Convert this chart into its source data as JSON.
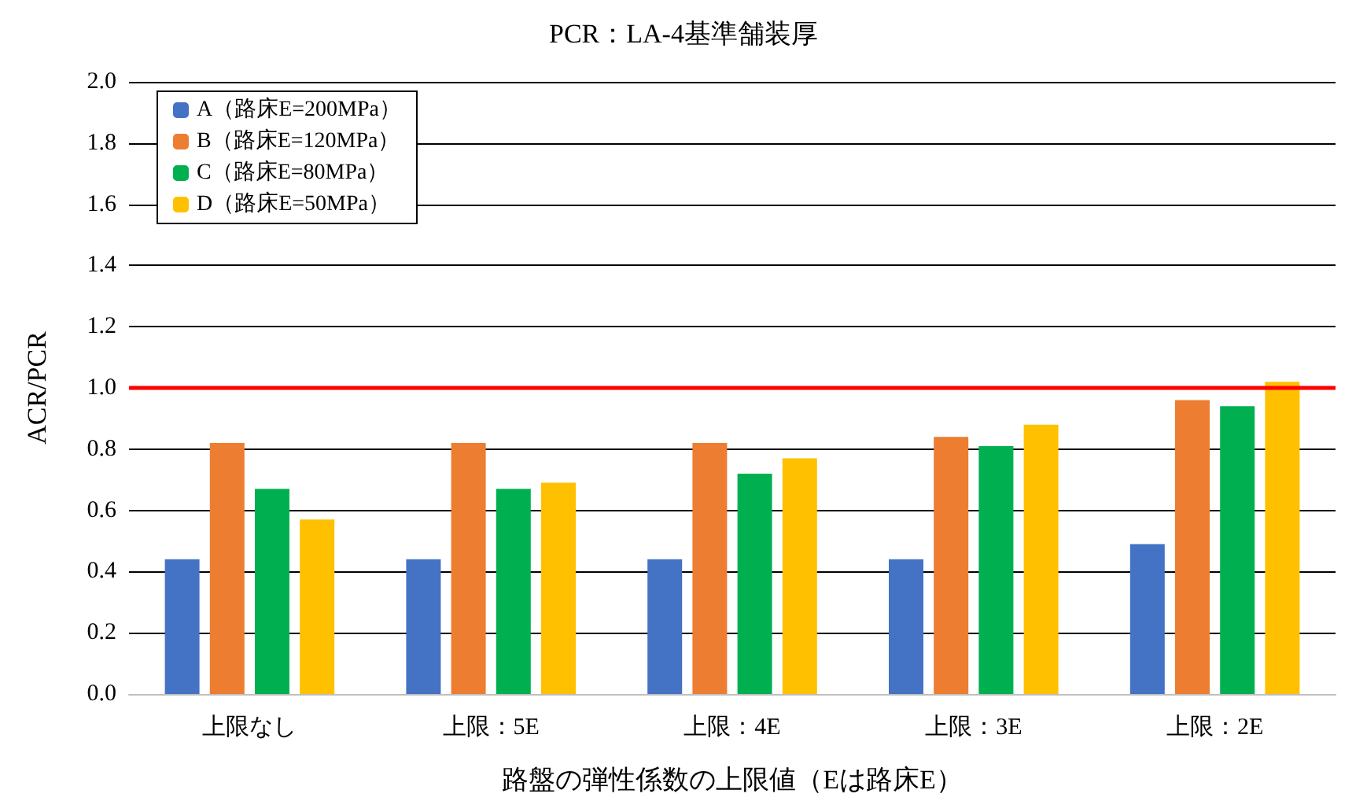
{
  "chart_data": {
    "type": "bar",
    "title": "PCR：LA-4基準舗装厚",
    "xlabel": "路盤の弾性係数の上限値（Eは路床E）",
    "ylabel": "ACR/PCR",
    "categories": [
      "上限なし",
      "上限：5E",
      "上限：4E",
      "上限：3E",
      "上限：2E"
    ],
    "series": [
      {
        "name": "A（路床E=200MPa）",
        "color": "#4472c4",
        "values": [
          0.44,
          0.44,
          0.44,
          0.44,
          0.49
        ]
      },
      {
        "name": "B（路床E=120MPa）",
        "color": "#ed7d31",
        "values": [
          0.82,
          0.82,
          0.82,
          0.84,
          0.96
        ]
      },
      {
        "name": "C（路床E=80MPa）",
        "color": "#00b050",
        "values": [
          0.67,
          0.67,
          0.72,
          0.81,
          0.94
        ]
      },
      {
        "name": "D（路床E=50MPa）",
        "color": "#ffc000",
        "values": [
          0.57,
          0.69,
          0.77,
          0.88,
          1.02
        ]
      }
    ],
    "ylim": [
      0,
      2
    ],
    "yticks": [
      {
        "value": 0,
        "label": "0.0"
      },
      0.2,
      0.4,
      0.6,
      0.8,
      {
        "value": 1,
        "label": "1.0"
      },
      1.2,
      1.4,
      1.6,
      1.8,
      {
        "value": 2,
        "label": "2.0"
      }
    ],
    "grid": "y",
    "legend": "top left",
    "ref_lines": [
      {
        "axis": "y",
        "value": 1,
        "color": "#ff0000"
      }
    ]
  }
}
